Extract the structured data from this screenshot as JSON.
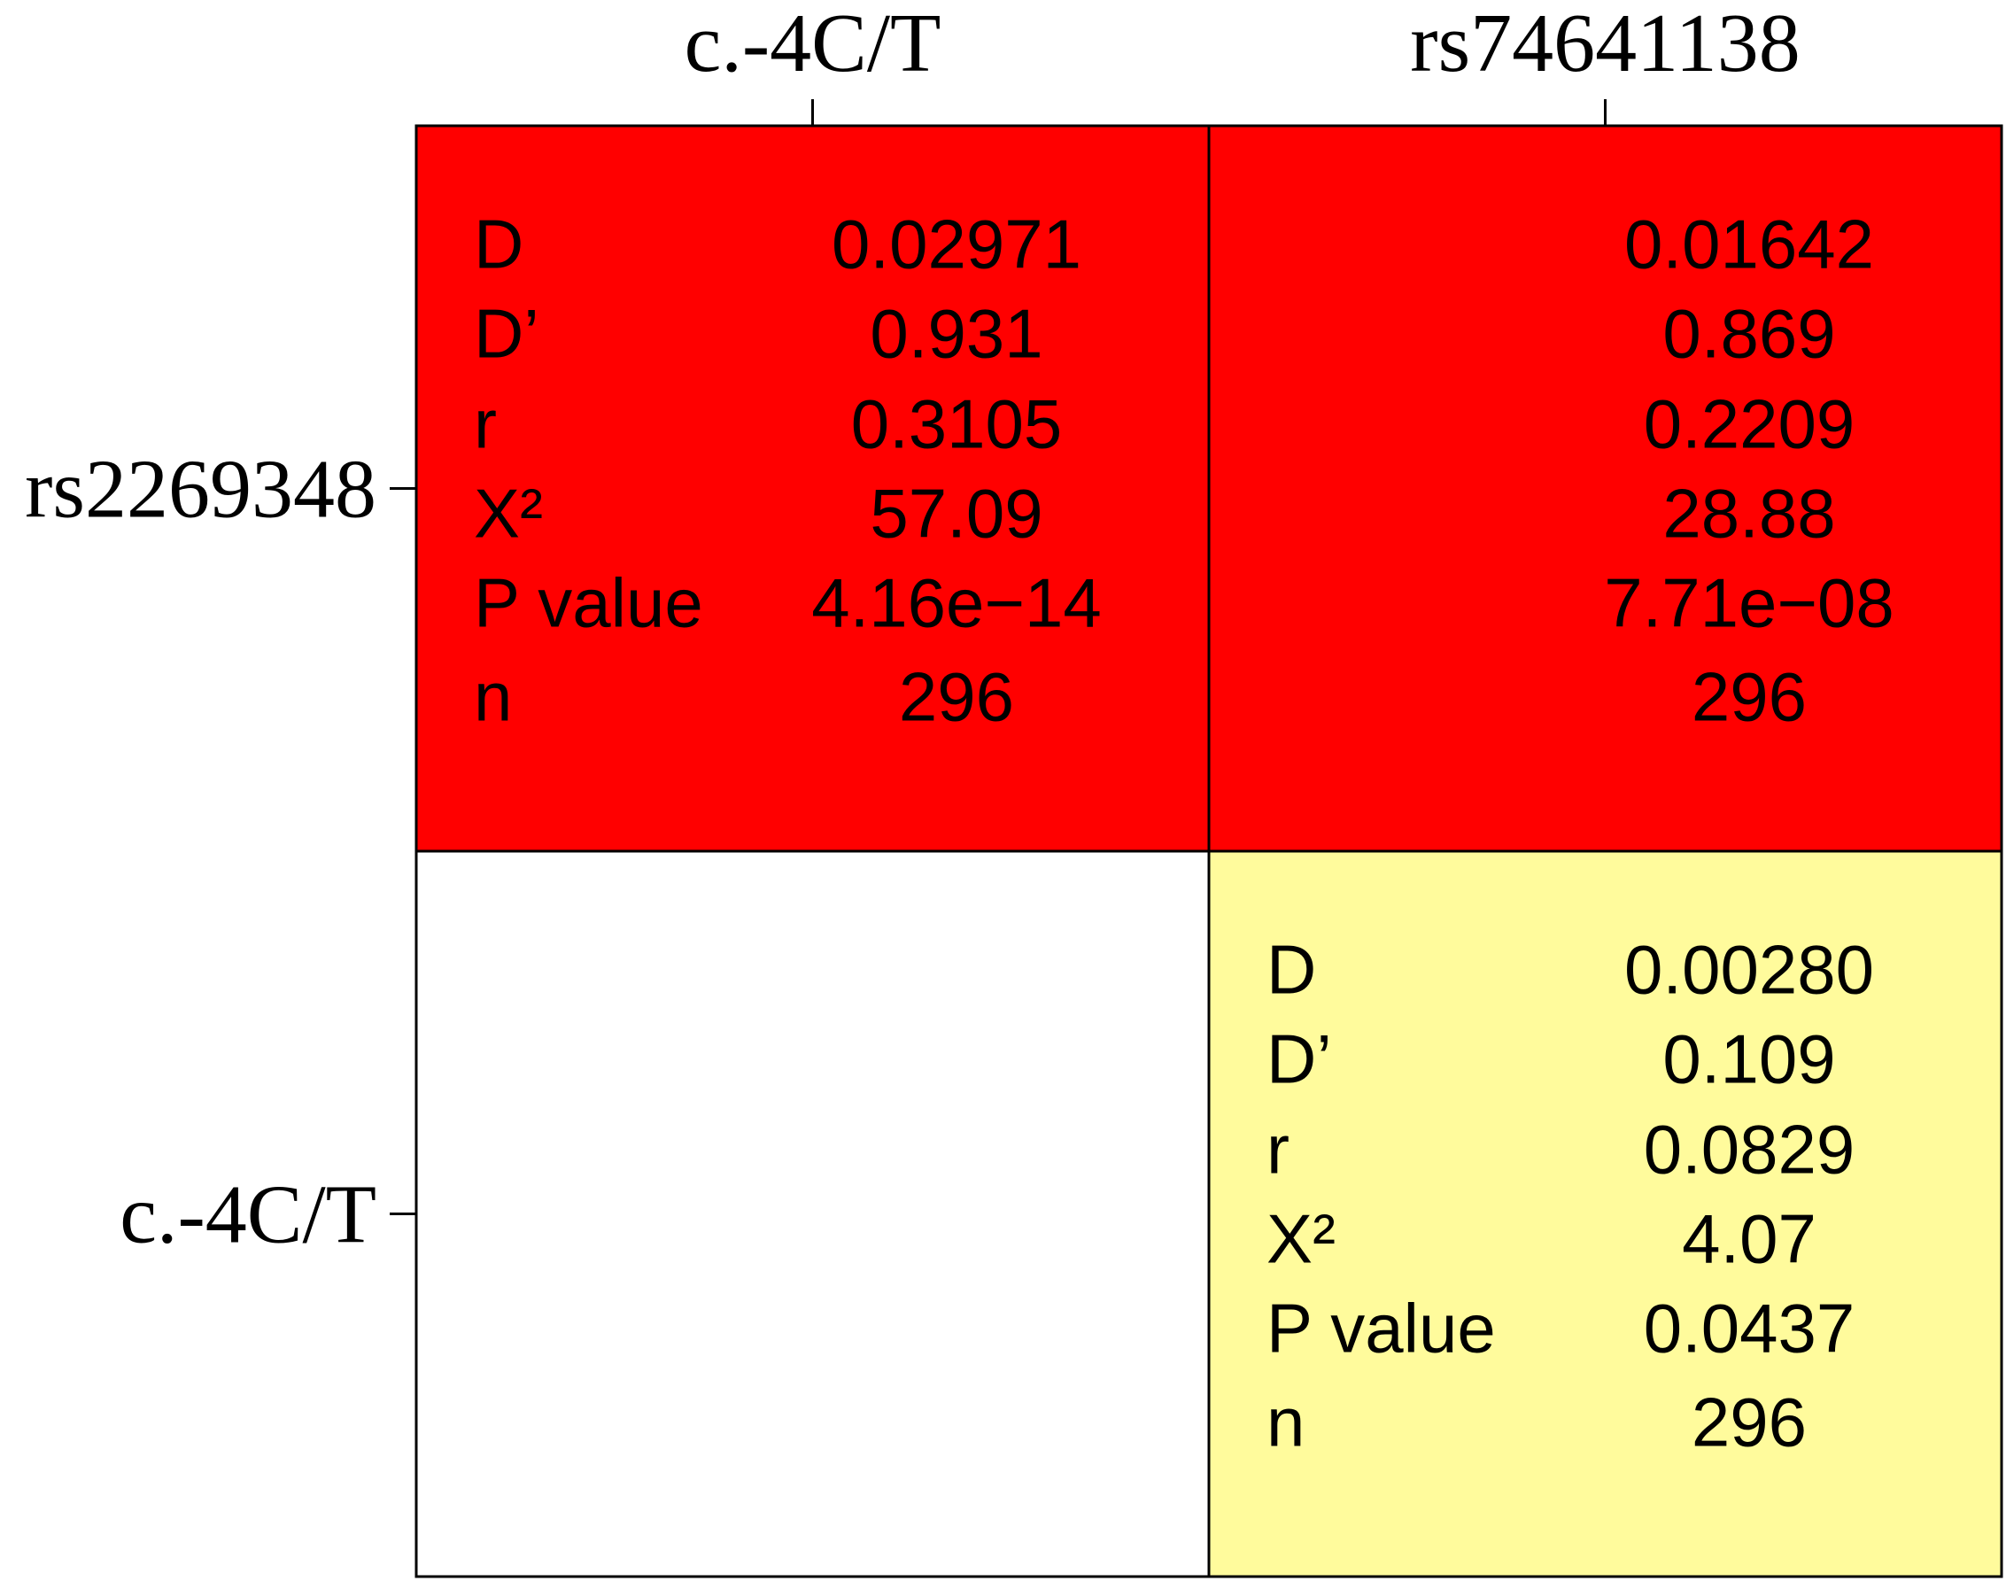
{
  "columns": [
    "c.-4C/T",
    "rs74641138"
  ],
  "rows": [
    "rs2269348",
    "c.-4C/T"
  ],
  "stat_labels": [
    "D",
    "D’",
    "r",
    "X²",
    "P  value",
    "n"
  ],
  "grid": [
    [
      {
        "color": "#ff0000",
        "labels": true,
        "values": [
          "0.02971",
          "0.931",
          "0.3105",
          "57.09",
          "4.16e−14",
          "296"
        ]
      },
      {
        "color": "#ff0000",
        "labels": false,
        "values": [
          "0.01642",
          "0.869",
          "0.2209",
          "28.88",
          "7.71e−08",
          "296"
        ]
      }
    ],
    [
      null,
      {
        "color": "#fffb9c",
        "labels": true,
        "values": [
          "0.00280",
          "0.109",
          "0.0829",
          "4.07",
          "0.0437",
          "296"
        ]
      }
    ]
  ]
}
